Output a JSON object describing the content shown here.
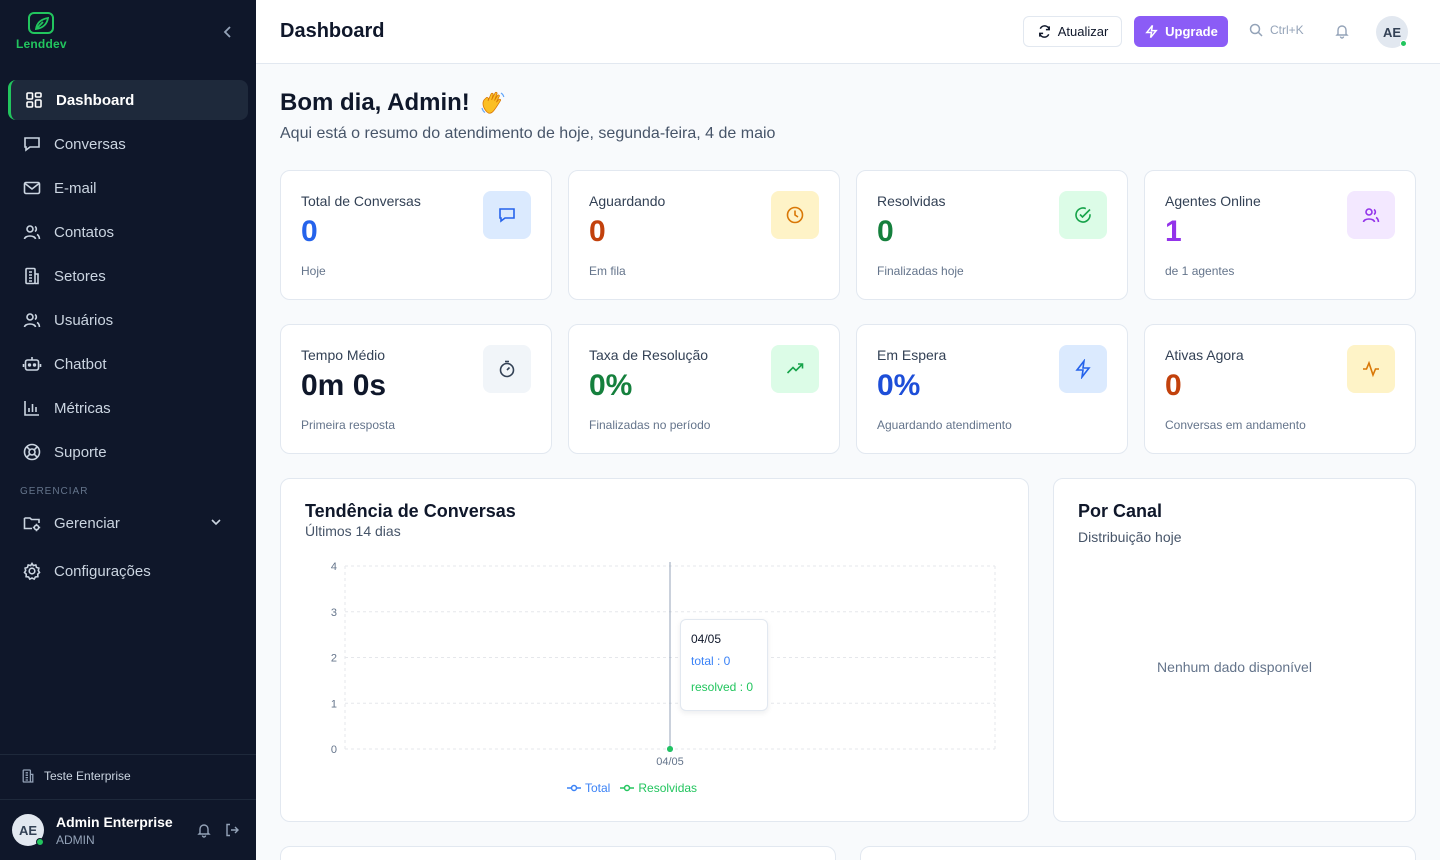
{
  "brand": {
    "name": "Lenddev",
    "accent": "#22c55e"
  },
  "sidebar": {
    "items": [
      {
        "label": "Dashboard",
        "icon": "layout-grid-icon",
        "active": true
      },
      {
        "label": "Conversas",
        "icon": "message-square-icon"
      },
      {
        "label": "E-mail",
        "icon": "mail-icon"
      },
      {
        "label": "Contatos",
        "icon": "users-icon"
      },
      {
        "label": "Setores",
        "icon": "building-icon"
      },
      {
        "label": "Usuários",
        "icon": "users-icon"
      },
      {
        "label": "Chatbot",
        "icon": "bot-icon"
      },
      {
        "label": "Métricas",
        "icon": "bar-chart-icon"
      },
      {
        "label": "Suporte",
        "icon": "life-buoy-icon"
      }
    ],
    "section_label": "GERENCIAR",
    "gerenciar_label": "Gerenciar",
    "config_label": "Configurações",
    "tenant": "Teste Enterprise",
    "user": {
      "initials": "AE",
      "name": "Admin Enterprise",
      "role": "ADMIN"
    }
  },
  "header": {
    "title": "Dashboard",
    "refresh_label": "Atualizar",
    "upgrade_label": "Upgrade",
    "search_hint": "Ctrl+K",
    "avatar_initials": "AE"
  },
  "greeting": {
    "title": "Bom dia, Admin!",
    "subtitle": "Aqui está o resumo do atendimento de hoje, segunda-feira, 4 de maio"
  },
  "stats": [
    {
      "title": "Total de Conversas",
      "value": "0",
      "note": "Hoje",
      "color": "#2563eb",
      "icon_bg": "#dbeafe",
      "icon_color": "#2563eb",
      "icon": "message-square-icon"
    },
    {
      "title": "Aguardando",
      "value": "0",
      "note": "Em fila",
      "color": "#c2410c",
      "icon_bg": "#fef3c7",
      "icon_color": "#d97706",
      "icon": "clock-icon"
    },
    {
      "title": "Resolvidas",
      "value": "0",
      "note": "Finalizadas hoje",
      "color": "#15803d",
      "icon_bg": "#dcfce7",
      "icon_color": "#16a34a",
      "icon": "check-circle-icon"
    },
    {
      "title": "Agentes Online",
      "value": "1",
      "note": "de 1 agentes",
      "color": "#9333ea",
      "icon_bg": "#f3e8ff",
      "icon_color": "#9333ea",
      "icon": "users-icon"
    },
    {
      "title": "Tempo Médio",
      "value": "0m 0s",
      "note": "Primeira resposta",
      "color": "#0f172a",
      "icon_bg": "#f1f5f9",
      "icon_color": "#334155",
      "icon": "timer-icon"
    },
    {
      "title": "Taxa de Resolução",
      "value": "0%",
      "note": "Finalizadas no período",
      "color": "#15803d",
      "icon_bg": "#dcfce7",
      "icon_color": "#16a34a",
      "icon": "trending-up-icon"
    },
    {
      "title": "Em Espera",
      "value": "0%",
      "note": "Aguardando atendimento",
      "color": "#1d4ed8",
      "icon_bg": "#dbeafe",
      "icon_color": "#2563eb",
      "icon": "zap-icon"
    },
    {
      "title": "Ativas Agora",
      "value": "0",
      "note": "Conversas em andamento",
      "color": "#c2410c",
      "icon_bg": "#fef3c7",
      "icon_color": "#d97706",
      "icon": "activity-icon"
    }
  ],
  "trend": {
    "title": "Tendência de Conversas",
    "subtitle": "Últimos 14 dias",
    "tooltip": {
      "date": "04/05",
      "total": "total : 0",
      "resolved": "resolved : 0"
    }
  },
  "channel": {
    "title": "Por Canal",
    "subtitle": "Distribuição hoje",
    "empty": "Nenhum dado disponível"
  },
  "chart_data": {
    "type": "line",
    "x": [
      "04/05"
    ],
    "series": [
      {
        "name": "Total",
        "values": [
          0
        ],
        "color": "#3b82f6"
      },
      {
        "name": "Resolvidas",
        "values": [
          0
        ],
        "color": "#22c55e"
      }
    ],
    "yticks": [
      0,
      1,
      2,
      3,
      4
    ],
    "ylim": [
      0,
      4
    ],
    "grid": true,
    "legend": "bottom"
  }
}
